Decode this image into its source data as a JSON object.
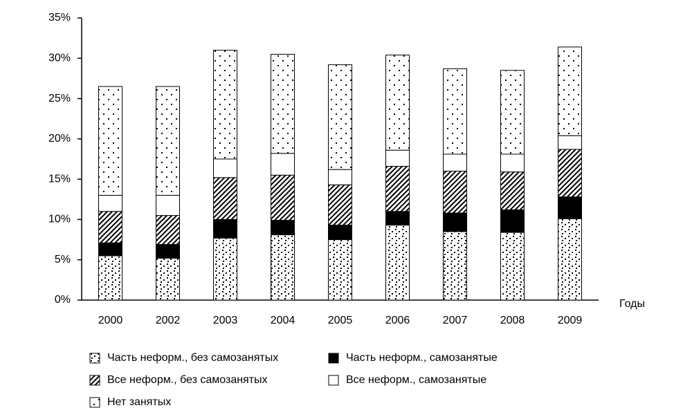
{
  "chart_data": {
    "type": "stacked-bar",
    "x_label": "Годы",
    "categories": [
      "2000",
      "2002",
      "2003",
      "2004",
      "2005",
      "2006",
      "2007",
      "2008",
      "2009"
    ],
    "series": [
      {
        "name": "Часть неформ., без самозанятых",
        "color": "#000000",
        "pattern": "dots-dense",
        "values": [
          5.5,
          5.2,
          7.7,
          8.1,
          7.5,
          9.3,
          8.5,
          8.4,
          10.1
        ]
      },
      {
        "name": "Часть неформ., самозанятые",
        "color": "#000000",
        "pattern": "solid",
        "values": [
          1.6,
          1.7,
          2.3,
          1.8,
          1.8,
          1.7,
          2.3,
          2.8,
          2.7
        ]
      },
      {
        "name": "Все неформ., без самозанятых",
        "color": "#000000",
        "pattern": "hatch",
        "values": [
          3.9,
          3.6,
          5.2,
          5.6,
          5.0,
          5.6,
          5.2,
          4.7,
          5.9
        ]
      },
      {
        "name": "Все неформ., самозанятые",
        "color": "#000000",
        "pattern": "empty",
        "values": [
          2.0,
          2.5,
          2.3,
          2.7,
          1.9,
          2.0,
          2.1,
          2.2,
          1.7
        ]
      },
      {
        "name": "Нет занятых",
        "color": "#000000",
        "pattern": "dots-sparse",
        "values": [
          13.5,
          13.5,
          13.5,
          12.3,
          13.0,
          11.8,
          10.6,
          10.4,
          11.0
        ]
      }
    ],
    "ylim": [
      0,
      35
    ],
    "yticks": [
      {
        "value": 0,
        "label": "0%"
      },
      {
        "value": 5,
        "label": "5%"
      },
      {
        "value": 10,
        "label": "10%"
      },
      {
        "value": 15,
        "label": "15%"
      },
      {
        "value": 20,
        "label": "20%"
      },
      {
        "value": 25,
        "label": "25%"
      },
      {
        "value": 30,
        "label": "30%"
      },
      {
        "value": 35,
        "label": "35%"
      }
    ],
    "grid": false
  }
}
